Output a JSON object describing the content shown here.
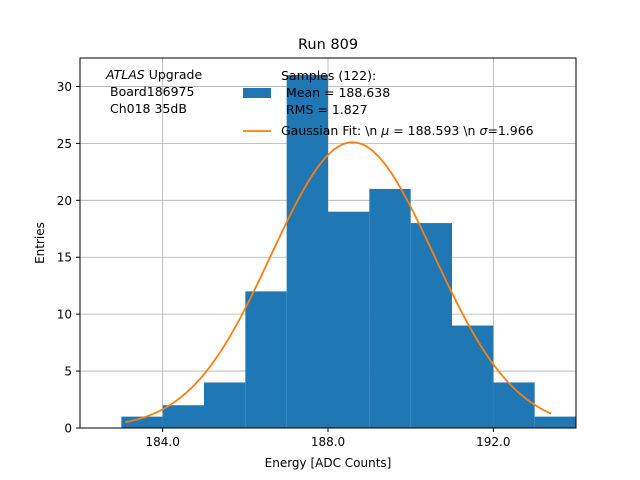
{
  "chart_data": {
    "type": "bar",
    "title": "Run 809",
    "xlabel": "Energy [ADC Counts]",
    "ylabel": "Entries",
    "xlim": [
      182.0,
      194.0
    ],
    "ylim": [
      0,
      32.5
    ],
    "xticks": [
      184.0,
      188.0,
      192.0
    ],
    "xtick_labels": [
      "184.0",
      "188.0",
      "192.0"
    ],
    "yticks": [
      0,
      5,
      10,
      15,
      20,
      25,
      30
    ],
    "ytick_labels": [
      "0",
      "5",
      "10",
      "15",
      "20",
      "25",
      "30"
    ],
    "grid": true,
    "histogram": {
      "bin_edges": [
        183,
        184,
        185,
        186,
        187,
        188,
        189,
        190,
        191,
        192,
        193,
        194
      ],
      "counts": [
        1,
        2,
        4,
        12,
        31,
        19,
        21,
        18,
        9,
        4,
        1
      ],
      "color": "#1f77b4"
    },
    "fit": {
      "type": "gaussian",
      "mu": 188.593,
      "sigma": 1.966,
      "amplitude": 25.1,
      "x_range": [
        183.1,
        193.4
      ],
      "color": "#ff7f0e"
    },
    "annotation": {
      "italic_word": "ATLAS",
      "line1_rest": " Upgrade",
      "line2": "Board186975",
      "line3": "Ch018 35dB"
    },
    "legend": {
      "location": "top-right",
      "hist_line1": "Samples (122):",
      "hist_line2": "Mean = 188.638",
      "hist_line3": "RMS = 1.827",
      "fit_prefix": "Gaussian Fit: \\n ",
      "fit_mu_symbol": "μ",
      "fit_mid": " = 188.593 \\n ",
      "fit_sigma_symbol": "σ",
      "fit_suffix": "=1.966"
    }
  }
}
